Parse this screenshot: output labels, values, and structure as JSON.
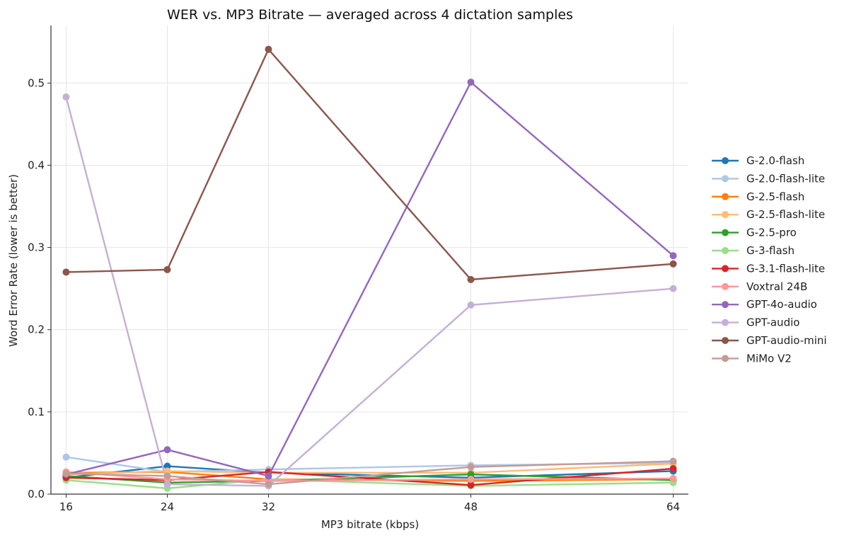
{
  "chart_data": {
    "type": "line",
    "title": "WER vs. MP3 Bitrate — averaged across 4 dictation samples",
    "xlabel": "MP3 bitrate (kbps)",
    "ylabel": "Word Error Rate (lower is better)",
    "x": [
      16,
      24,
      32,
      48,
      64
    ],
    "x_tick_labels": [
      "16",
      "24",
      "32",
      "48",
      "64"
    ],
    "y_ticks": [
      0.0,
      0.1,
      0.2,
      0.3,
      0.4,
      0.5
    ],
    "y_tick_labels": [
      "0.0",
      "0.1",
      "0.2",
      "0.3",
      "0.4",
      "0.5"
    ],
    "xlim": [
      14.8,
      65.2
    ],
    "ylim": [
      0.0,
      0.57
    ],
    "grid": true,
    "legend_position": "right",
    "series": [
      {
        "name": "G-2.0-flash",
        "color": "#1f77b4",
        "values": [
          0.02,
          0.034,
          0.026,
          0.02,
          0.028
        ]
      },
      {
        "name": "G-2.0-flash-lite",
        "color": "#aec7e8",
        "values": [
          0.045,
          0.027,
          0.03,
          0.035,
          0.038
        ]
      },
      {
        "name": "G-2.5-flash",
        "color": "#ff7f0e",
        "values": [
          0.026,
          0.027,
          0.018,
          0.016,
          0.018
        ]
      },
      {
        "name": "G-2.5-flash-lite",
        "color": "#ffbb78",
        "values": [
          0.024,
          0.028,
          0.026,
          0.026,
          0.037
        ]
      },
      {
        "name": "G-2.5-pro",
        "color": "#2ca02c",
        "values": [
          0.022,
          0.014,
          0.016,
          0.024,
          0.017
        ]
      },
      {
        "name": "G-3-flash",
        "color": "#98df8a",
        "values": [
          0.017,
          0.007,
          0.018,
          0.01,
          0.014
        ]
      },
      {
        "name": "G-3.1-flash-lite",
        "color": "#d62728",
        "values": [
          0.02,
          0.017,
          0.027,
          0.011,
          0.031
        ]
      },
      {
        "name": "Voxtral 24B",
        "color": "#ff9896",
        "values": [
          0.027,
          0.018,
          0.016,
          0.018,
          0.019
        ]
      },
      {
        "name": "GPT-4o-audio",
        "color": "#9467bd",
        "values": [
          0.024,
          0.054,
          0.022,
          0.501,
          0.29
        ]
      },
      {
        "name": "GPT-audio",
        "color": "#c5b0d5",
        "values": [
          0.483,
          0.012,
          0.01,
          0.23,
          0.25
        ]
      },
      {
        "name": "GPT-audio-mini",
        "color": "#8c564b",
        "values": [
          0.27,
          0.273,
          0.541,
          0.261,
          0.28
        ]
      },
      {
        "name": "MiMo V2",
        "color": "#c49c94",
        "values": [
          0.025,
          0.022,
          0.012,
          0.033,
          0.04
        ]
      }
    ]
  }
}
